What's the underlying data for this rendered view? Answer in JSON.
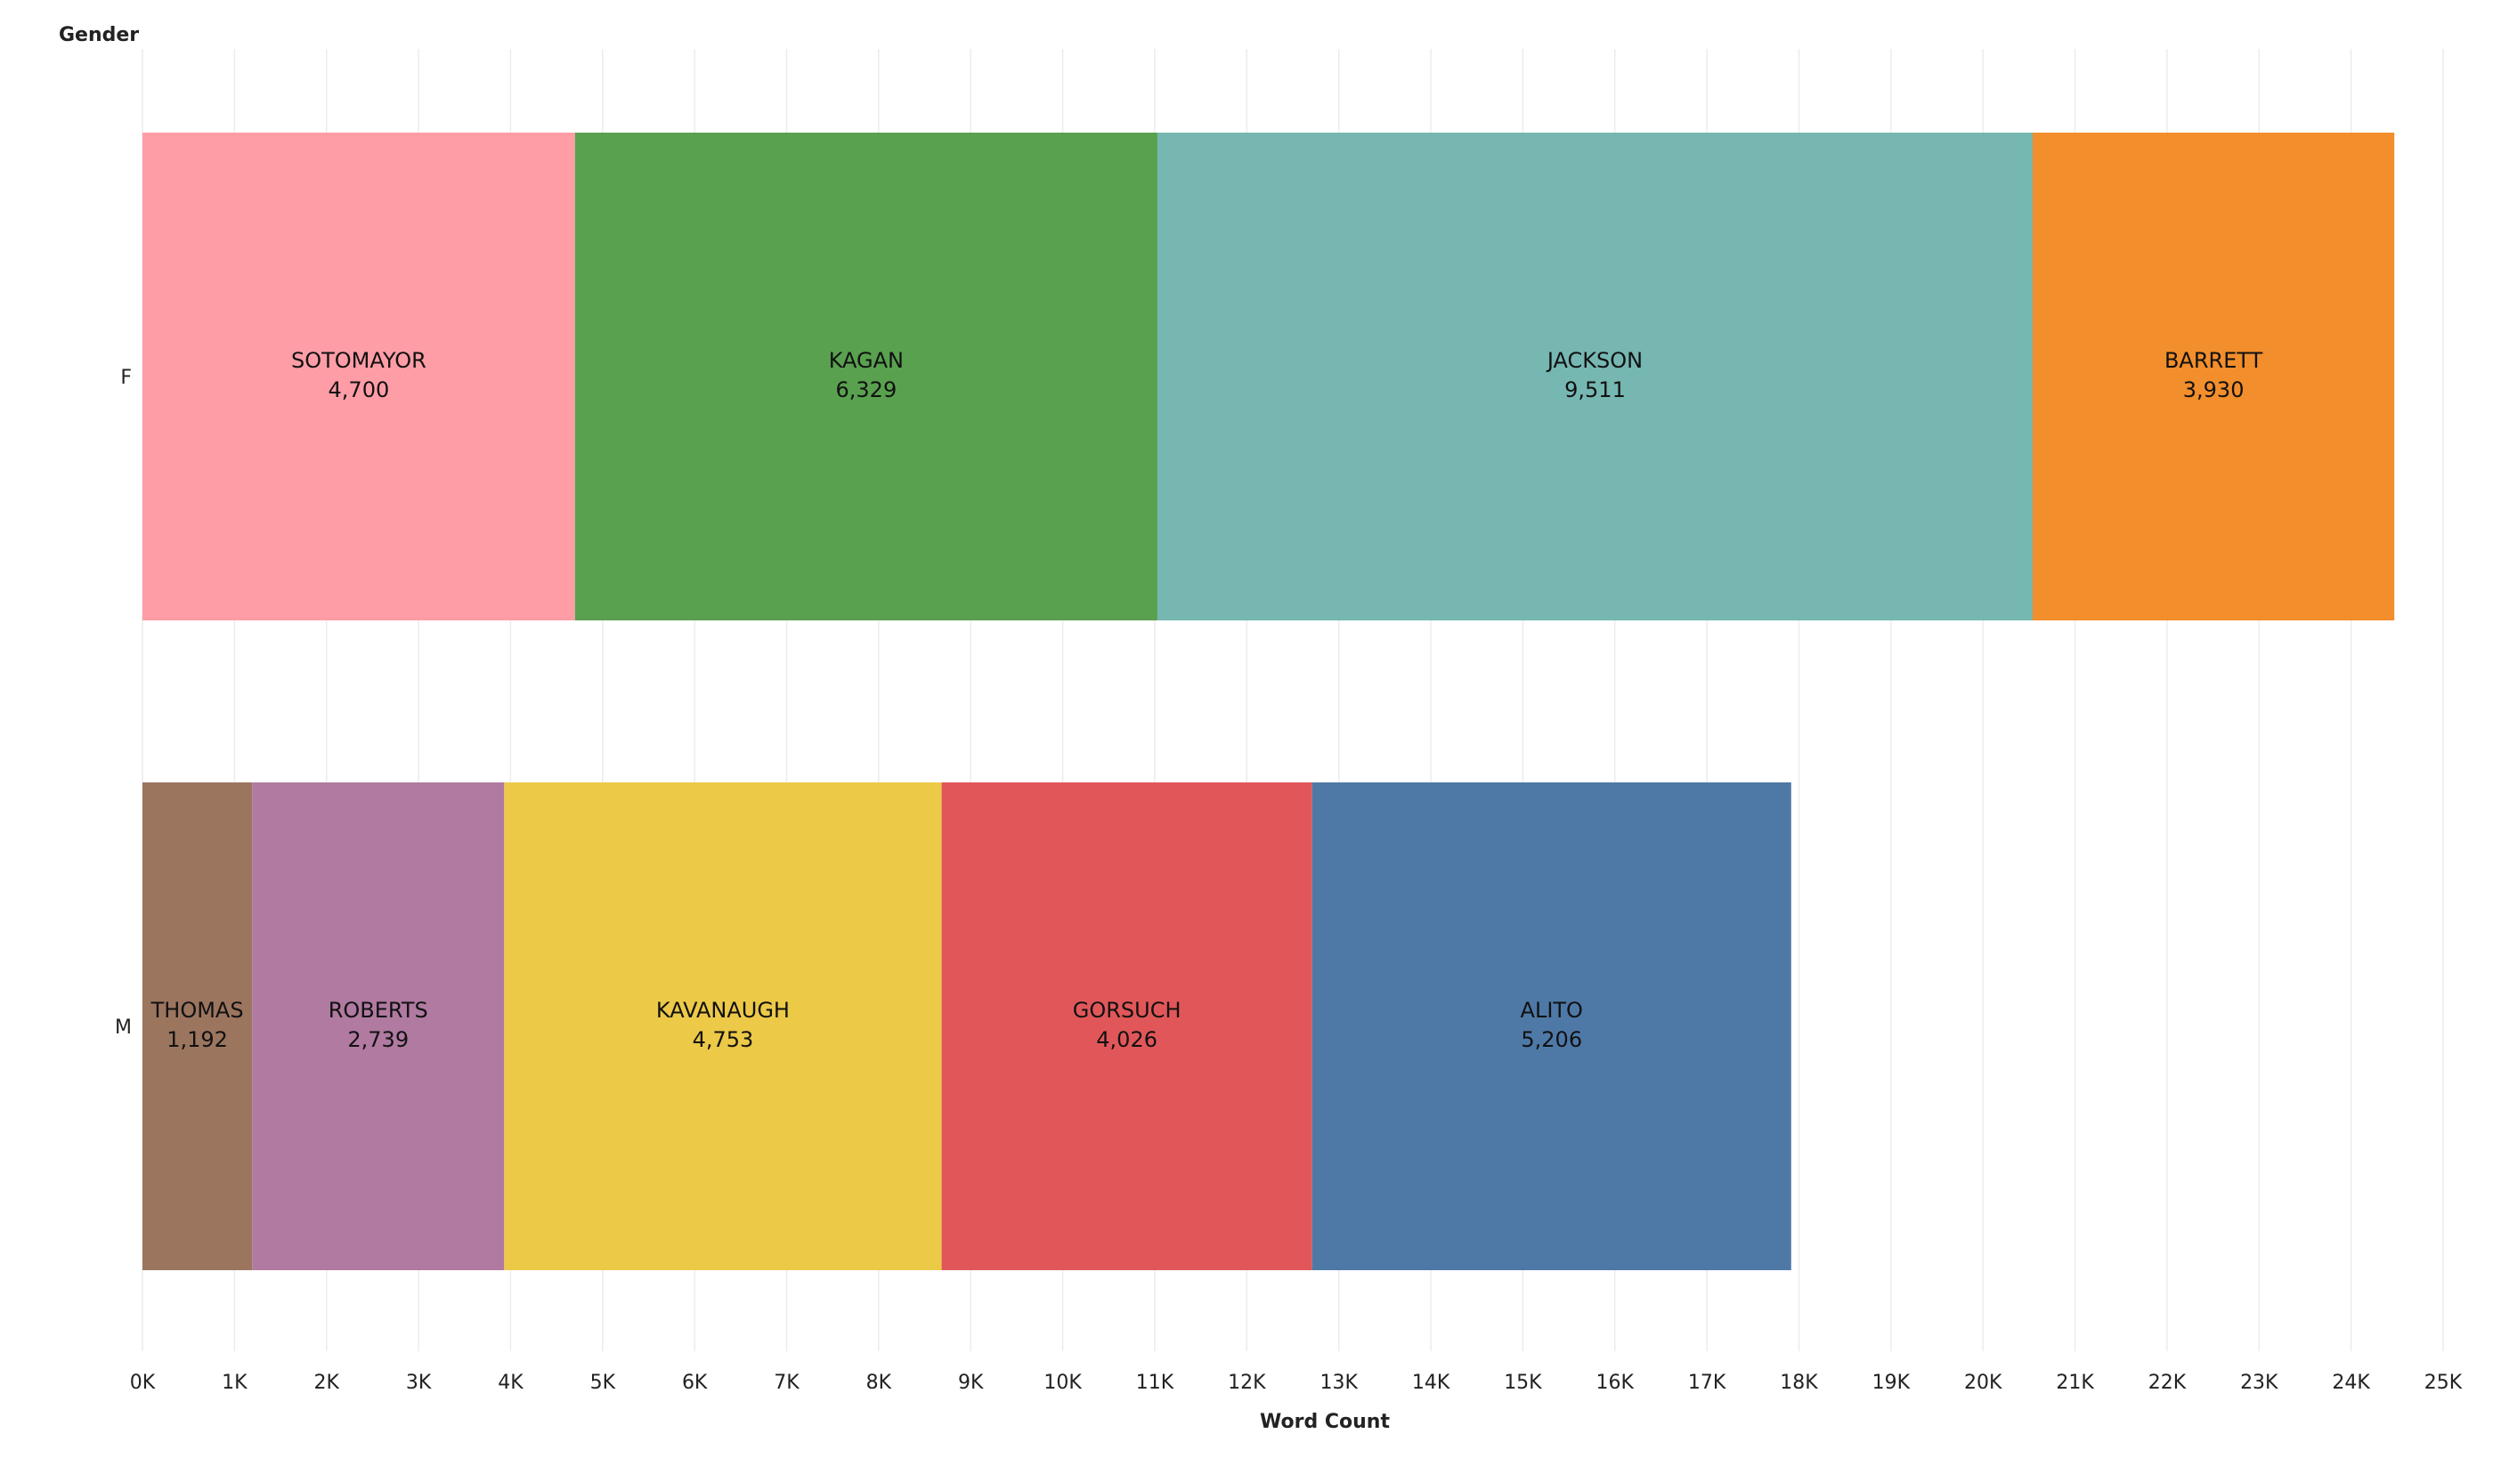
{
  "chart_data": {
    "type": "bar",
    "orientation": "horizontal",
    "stacked": true,
    "xlabel": "Word Count",
    "ylabel": "Gender",
    "xlim": [
      0,
      25000
    ],
    "x_ticks": [
      {
        "value": 0,
        "label": "0K"
      },
      {
        "value": 1000,
        "label": "1K"
      },
      {
        "value": 2000,
        "label": "2K"
      },
      {
        "value": 3000,
        "label": "3K"
      },
      {
        "value": 4000,
        "label": "4K"
      },
      {
        "value": 5000,
        "label": "5K"
      },
      {
        "value": 6000,
        "label": "6K"
      },
      {
        "value": 7000,
        "label": "7K"
      },
      {
        "value": 8000,
        "label": "8K"
      },
      {
        "value": 9000,
        "label": "9K"
      },
      {
        "value": 10000,
        "label": "10K"
      },
      {
        "value": 11000,
        "label": "11K"
      },
      {
        "value": 12000,
        "label": "12K"
      },
      {
        "value": 13000,
        "label": "13K"
      },
      {
        "value": 14000,
        "label": "14K"
      },
      {
        "value": 15000,
        "label": "15K"
      },
      {
        "value": 16000,
        "label": "16K"
      },
      {
        "value": 17000,
        "label": "17K"
      },
      {
        "value": 18000,
        "label": "18K"
      },
      {
        "value": 19000,
        "label": "19K"
      },
      {
        "value": 20000,
        "label": "20K"
      },
      {
        "value": 21000,
        "label": "21K"
      },
      {
        "value": 22000,
        "label": "22K"
      },
      {
        "value": 23000,
        "label": "23K"
      },
      {
        "value": 24000,
        "label": "24K"
      },
      {
        "value": 25000,
        "label": "25K"
      }
    ],
    "grid": true,
    "categories": [
      "F",
      "M"
    ],
    "stacks": [
      {
        "category": "F",
        "segments": [
          {
            "name": "SOTOMAYOR",
            "value": 4700,
            "value_label": "4,700",
            "color": "#FF9DA7"
          },
          {
            "name": "KAGAN",
            "value": 6329,
            "value_label": "6,329",
            "color": "#59A14F"
          },
          {
            "name": "JACKSON",
            "value": 9511,
            "value_label": "9,511",
            "color": "#76B7B2"
          },
          {
            "name": "BARRETT",
            "value": 3930,
            "value_label": "3,930",
            "color": "#F28E2B"
          }
        ]
      },
      {
        "category": "M",
        "segments": [
          {
            "name": "THOMAS",
            "value": 1192,
            "value_label": "1,192",
            "color": "#9C755F"
          },
          {
            "name": "ROBERTS",
            "value": 2739,
            "value_label": "2,739",
            "color": "#B07AA1"
          },
          {
            "name": "KAVANAUGH",
            "value": 4753,
            "value_label": "4,753",
            "color": "#EDC948"
          },
          {
            "name": "GORSUCH",
            "value": 4026,
            "value_label": "4,026",
            "color": "#E15759"
          },
          {
            "name": "ALITO",
            "value": 5206,
            "value_label": "5,206",
            "color": "#4E79A7"
          }
        ]
      }
    ]
  }
}
